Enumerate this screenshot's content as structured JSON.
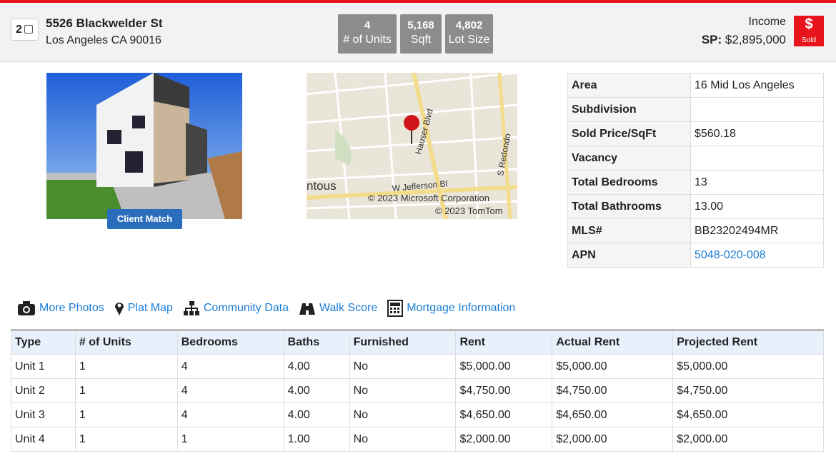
{
  "header": {
    "index": "2",
    "address": "5526 Blackwelder St",
    "city": "Los Angeles CA 90016",
    "stats": [
      {
        "value": "4",
        "label": "# of Units"
      },
      {
        "value": "5,168",
        "label": "Sqft"
      },
      {
        "value": "4,802",
        "label": "Lot Size"
      }
    ],
    "category": "Income",
    "sp_label": "SP:",
    "sp_value": "$2,895,000",
    "badge_symbol": "$",
    "badge_text": "Sold"
  },
  "photo": {
    "button": "Client Match"
  },
  "map": {
    "labels": [
      "Hauser Blvd",
      "S Redondo",
      "ntous",
      "W Jefferson Bl",
      "© 2023 Microsoft Corporation",
      "© 2023 TomTom"
    ]
  },
  "details": [
    [
      "Area",
      "16 Mid Los Angeles"
    ],
    [
      "Subdivision",
      ""
    ],
    [
      "Sold Price/SqFt",
      "$560.18"
    ],
    [
      "Vacancy",
      ""
    ],
    [
      "Total Bedrooms",
      "13"
    ],
    [
      "Total Bathrooms",
      "13.00"
    ],
    [
      "MLS#",
      "BB23202494MR"
    ],
    [
      "APN",
      "5048-020-008"
    ]
  ],
  "links": [
    "More Photos",
    "Plat Map",
    "Community Data",
    "Walk Score",
    "Mortgage Information"
  ],
  "table": {
    "headers": [
      "Type",
      "# of Units",
      "Bedrooms",
      "Baths",
      "Furnished",
      "Rent",
      "Actual Rent",
      "Projected Rent"
    ],
    "rows": [
      [
        "Unit 1",
        "1",
        "4",
        "4.00",
        "No",
        "$5,000.00",
        "$5,000.00",
        "$5,000.00"
      ],
      [
        "Unit 2",
        "1",
        "4",
        "4.00",
        "No",
        "$4,750.00",
        "$4,750.00",
        "$4,750.00"
      ],
      [
        "Unit 3",
        "1",
        "4",
        "4.00",
        "No",
        "$4,650.00",
        "$4,650.00",
        "$4,650.00"
      ],
      [
        "Unit 4",
        "1",
        "1",
        "1.00",
        "No",
        "$2,000.00",
        "$2,000.00",
        "$2,000.00"
      ]
    ]
  }
}
